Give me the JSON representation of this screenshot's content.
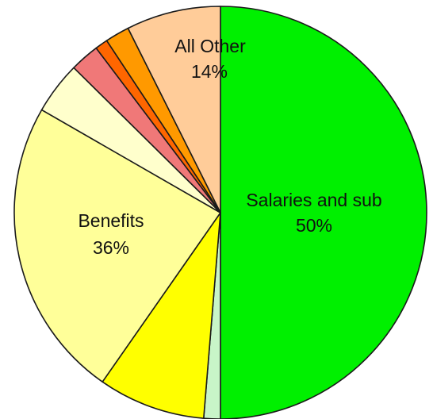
{
  "chart_data": {
    "type": "pie",
    "start_angle_deg": 0,
    "direction": "clockwise",
    "slices": [
      {
        "name": "Salaries and sub",
        "value": 50.0,
        "color": "#00f000",
        "label": "Salaries and sub",
        "pct_label": "50%"
      },
      {
        "name": "",
        "value": 1.3,
        "color": "#c8f5c8",
        "label": "",
        "pct_label": ""
      },
      {
        "name": "",
        "value": 8.4,
        "color": "#ffff00",
        "label": "",
        "pct_label": ""
      },
      {
        "name": "Benefits",
        "value": 23.6,
        "color": "#ffff99",
        "label": "Benefits",
        "pct_label": "36%"
      },
      {
        "name": "",
        "value": 4.1,
        "color": "#ffffcc",
        "label": "",
        "pct_label": ""
      },
      {
        "name": "",
        "value": 2.3,
        "color": "#f07878",
        "label": "",
        "pct_label": ""
      },
      {
        "name": "",
        "value": 1.0,
        "color": "#ff6600",
        "label": "",
        "pct_label": ""
      },
      {
        "name": "",
        "value": 1.9,
        "color": "#ff9900",
        "label": "",
        "pct_label": ""
      },
      {
        "name": "All Other",
        "value": 7.4,
        "color": "#ffcc99",
        "label": "All Other",
        "pct_label": "14%"
      }
    ]
  }
}
